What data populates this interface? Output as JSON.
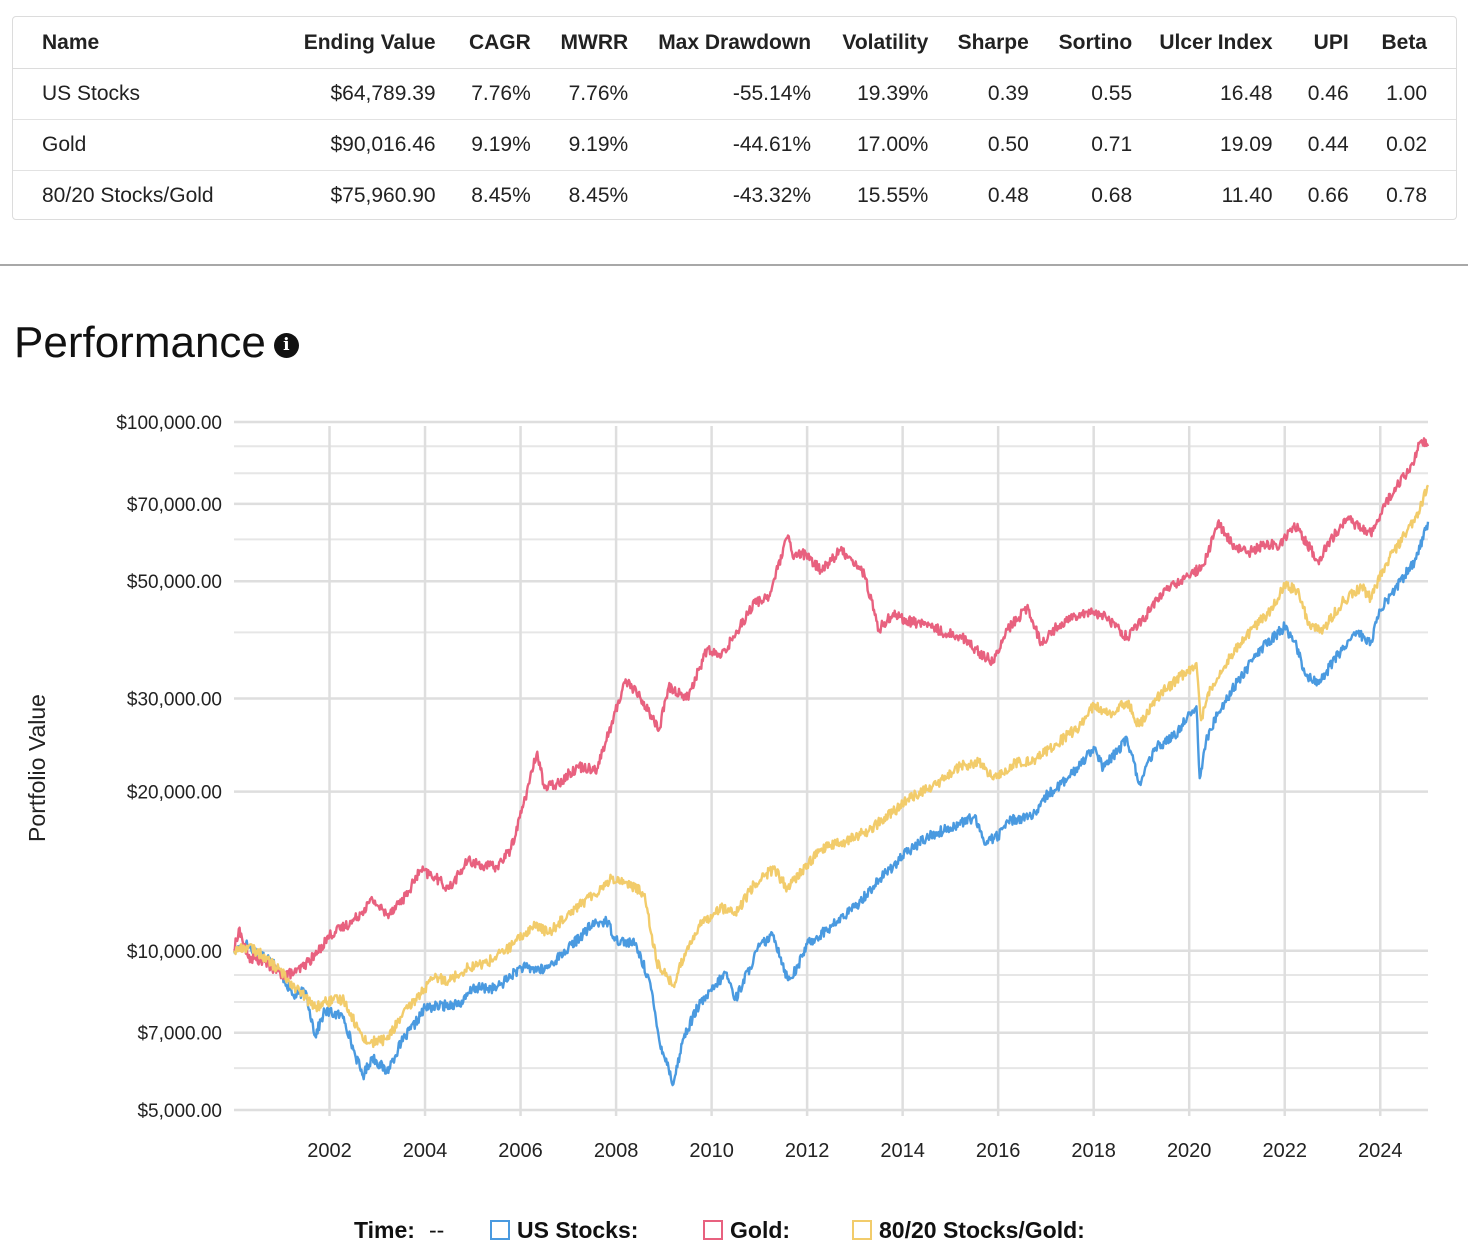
{
  "table": {
    "headers": [
      "Name",
      "Ending Value",
      "CAGR",
      "MWRR",
      "Max Drawdown",
      "Volatility",
      "Sharpe",
      "Sortino",
      "Ulcer Index",
      "UPI",
      "Beta"
    ],
    "rows": [
      [
        "US Stocks",
        "$64,789.39",
        "7.76%",
        "7.76%",
        "-55.14%",
        "19.39%",
        "0.39",
        "0.55",
        "16.48",
        "0.46",
        "1.00"
      ],
      [
        "Gold",
        "$90,016.46",
        "9.19%",
        "9.19%",
        "-44.61%",
        "17.00%",
        "0.50",
        "0.71",
        "19.09",
        "0.44",
        "0.02"
      ],
      [
        "80/20 Stocks/Gold",
        "$75,960.90",
        "8.45%",
        "8.45%",
        "-43.32%",
        "15.55%",
        "0.48",
        "0.68",
        "11.40",
        "0.66",
        "0.78"
      ]
    ]
  },
  "section": {
    "title": "Performance",
    "info_icon": "info-icon"
  },
  "chart_data": {
    "type": "line",
    "title": "Performance",
    "xlabel": "",
    "ylabel": "Portfolio Value",
    "yscale": "log",
    "ylim": [
      5000,
      100000
    ],
    "xlim": [
      2000.0,
      2025.0
    ],
    "yticks": [
      {
        "value": 100000,
        "label": "$100,000.00"
      },
      {
        "value": 70000,
        "label": "$70,000.00"
      },
      {
        "value": 50000,
        "label": "$50,000.00"
      },
      {
        "value": 30000,
        "label": "$30,000.00"
      },
      {
        "value": 20000,
        "label": "$20,000.00"
      },
      {
        "value": 10000,
        "label": "$10,000.00"
      },
      {
        "value": 7000,
        "label": "$7,000.00"
      },
      {
        "value": 5000,
        "label": "$5,000.00"
      }
    ],
    "minor_gridlines": [
      90000,
      80000,
      60000,
      40000,
      9000,
      8000,
      6000
    ],
    "xticks": [
      "2002",
      "2004",
      "2006",
      "2008",
      "2010",
      "2012",
      "2014",
      "2016",
      "2018",
      "2020",
      "2022",
      "2024"
    ],
    "series": [
      {
        "name": "US Stocks",
        "color": "#4a9ae0",
        "points": [
          [
            2000.0,
            10000
          ],
          [
            2000.25,
            10300
          ],
          [
            2000.5,
            9900
          ],
          [
            2000.75,
            9700
          ],
          [
            2001.0,
            9000
          ],
          [
            2001.25,
            8200
          ],
          [
            2001.5,
            8400
          ],
          [
            2001.7,
            6900
          ],
          [
            2001.9,
            7700
          ],
          [
            2002.3,
            7500
          ],
          [
            2002.5,
            6500
          ],
          [
            2002.7,
            5800
          ],
          [
            2002.9,
            6300
          ],
          [
            2003.2,
            5900
          ],
          [
            2003.5,
            6700
          ],
          [
            2003.8,
            7300
          ],
          [
            2004.0,
            7800
          ],
          [
            2004.5,
            7900
          ],
          [
            2004.8,
            8000
          ],
          [
            2005.0,
            8500
          ],
          [
            2005.5,
            8500
          ],
          [
            2006.0,
            9300
          ],
          [
            2006.5,
            9200
          ],
          [
            2007.0,
            10100
          ],
          [
            2007.5,
            11200
          ],
          [
            2007.8,
            11400
          ],
          [
            2008.0,
            10500
          ],
          [
            2008.4,
            10300
          ],
          [
            2008.7,
            8800
          ],
          [
            2008.9,
            6800
          ],
          [
            2009.1,
            6000
          ],
          [
            2009.2,
            5600
          ],
          [
            2009.4,
            6800
          ],
          [
            2009.7,
            7800
          ],
          [
            2010.0,
            8400
          ],
          [
            2010.3,
            9100
          ],
          [
            2010.5,
            8100
          ],
          [
            2010.8,
            9300
          ],
          [
            2011.0,
            10200
          ],
          [
            2011.3,
            10700
          ],
          [
            2011.6,
            8800
          ],
          [
            2011.8,
            9300
          ],
          [
            2012.0,
            10300
          ],
          [
            2012.5,
            11100
          ],
          [
            2013.0,
            12100
          ],
          [
            2013.5,
            13600
          ],
          [
            2014.0,
            15100
          ],
          [
            2014.5,
            16400
          ],
          [
            2015.0,
            17100
          ],
          [
            2015.5,
            17900
          ],
          [
            2015.7,
            16100
          ],
          [
            2016.0,
            16500
          ],
          [
            2016.2,
            17600
          ],
          [
            2016.8,
            18100
          ],
          [
            2017.0,
            19600
          ],
          [
            2017.5,
            21300
          ],
          [
            2018.0,
            24300
          ],
          [
            2018.2,
            22100
          ],
          [
            2018.7,
            25200
          ],
          [
            2018.95,
            20700
          ],
          [
            2019.3,
            24200
          ],
          [
            2019.7,
            25500
          ],
          [
            2020.0,
            28100
          ],
          [
            2020.15,
            29000
          ],
          [
            2020.22,
            21200
          ],
          [
            2020.35,
            24800
          ],
          [
            2020.6,
            28200
          ],
          [
            2021.0,
            32200
          ],
          [
            2021.5,
            37200
          ],
          [
            2022.0,
            41000
          ],
          [
            2022.2,
            38500
          ],
          [
            2022.45,
            33100
          ],
          [
            2022.75,
            32200
          ],
          [
            2023.0,
            35200
          ],
          [
            2023.5,
            40200
          ],
          [
            2023.8,
            38200
          ],
          [
            2024.0,
            44100
          ],
          [
            2024.5,
            51100
          ],
          [
            2024.75,
            55100
          ],
          [
            2025.0,
            64789
          ]
        ]
      },
      {
        "name": "Gold",
        "color": "#e8617f",
        "points": [
          [
            2000.0,
            10000
          ],
          [
            2000.1,
            11000
          ],
          [
            2000.3,
            9700
          ],
          [
            2000.6,
            9600
          ],
          [
            2001.0,
            9000
          ],
          [
            2001.3,
            9100
          ],
          [
            2001.7,
            9800
          ],
          [
            2002.0,
            10700
          ],
          [
            2002.5,
            11400
          ],
          [
            2002.9,
            12500
          ],
          [
            2003.2,
            11700
          ],
          [
            2003.6,
            12700
          ],
          [
            2003.9,
            14200
          ],
          [
            2004.2,
            13800
          ],
          [
            2004.5,
            13100
          ],
          [
            2004.9,
            14800
          ],
          [
            2005.2,
            14500
          ],
          [
            2005.5,
            14400
          ],
          [
            2005.8,
            15600
          ],
          [
            2006.1,
            19500
          ],
          [
            2006.35,
            23800
          ],
          [
            2006.5,
            20300
          ],
          [
            2006.8,
            20800
          ],
          [
            2007.2,
            22300
          ],
          [
            2007.6,
            22100
          ],
          [
            2007.9,
            26700
          ],
          [
            2008.2,
            32600
          ],
          [
            2008.5,
            30200
          ],
          [
            2008.7,
            28200
          ],
          [
            2008.9,
            26200
          ],
          [
            2009.1,
            31500
          ],
          [
            2009.5,
            30100
          ],
          [
            2009.9,
            37100
          ],
          [
            2010.2,
            36000
          ],
          [
            2010.6,
            41200
          ],
          [
            2010.9,
            45500
          ],
          [
            2011.2,
            46800
          ],
          [
            2011.6,
            61000
          ],
          [
            2011.7,
            55500
          ],
          [
            2011.9,
            56500
          ],
          [
            2012.3,
            52500
          ],
          [
            2012.7,
            57200
          ],
          [
            2012.9,
            55500
          ],
          [
            2013.2,
            51500
          ],
          [
            2013.5,
            40500
          ],
          [
            2013.8,
            43500
          ],
          [
            2014.1,
            42000
          ],
          [
            2014.5,
            41500
          ],
          [
            2014.9,
            39800
          ],
          [
            2015.2,
            39500
          ],
          [
            2015.6,
            36700
          ],
          [
            2015.9,
            35200
          ],
          [
            2016.2,
            40500
          ],
          [
            2016.6,
            44500
          ],
          [
            2016.9,
            38300
          ],
          [
            2017.3,
            41500
          ],
          [
            2017.7,
            43500
          ],
          [
            2018.0,
            43800
          ],
          [
            2018.3,
            42500
          ],
          [
            2018.7,
            39200
          ],
          [
            2019.0,
            42000
          ],
          [
            2019.5,
            48200
          ],
          [
            2019.9,
            50500
          ],
          [
            2020.3,
            53500
          ],
          [
            2020.6,
            64600
          ],
          [
            2020.9,
            58600
          ],
          [
            2021.2,
            56500
          ],
          [
            2021.6,
            58600
          ],
          [
            2021.9,
            58600
          ],
          [
            2022.2,
            64300
          ],
          [
            2022.7,
            54500
          ],
          [
            2023.0,
            60500
          ],
          [
            2023.3,
            65700
          ],
          [
            2023.8,
            61500
          ],
          [
            2024.0,
            66800
          ],
          [
            2024.3,
            75000
          ],
          [
            2024.6,
            80500
          ],
          [
            2024.85,
            92000
          ],
          [
            2025.0,
            90016
          ]
        ]
      },
      {
        "name": "80/20 Stocks/Gold",
        "color": "#f2cc6b",
        "points": [
          [
            2000.0,
            10000
          ],
          [
            2000.3,
            10200
          ],
          [
            2000.6,
            9800
          ],
          [
            2001.0,
            9100
          ],
          [
            2001.3,
            8500
          ],
          [
            2001.7,
            7800
          ],
          [
            2001.9,
            8000
          ],
          [
            2002.3,
            8100
          ],
          [
            2002.6,
            7100
          ],
          [
            2002.8,
            6700
          ],
          [
            2003.2,
            6800
          ],
          [
            2003.5,
            7500
          ],
          [
            2003.9,
            8300
          ],
          [
            2004.2,
            8900
          ],
          [
            2004.5,
            8800
          ],
          [
            2004.9,
            9300
          ],
          [
            2005.3,
            9500
          ],
          [
            2005.8,
            10200
          ],
          [
            2006.3,
            11200
          ],
          [
            2006.6,
            10800
          ],
          [
            2007.0,
            11800
          ],
          [
            2007.5,
            12700
          ],
          [
            2007.9,
            13700
          ],
          [
            2008.2,
            13500
          ],
          [
            2008.6,
            12800
          ],
          [
            2008.85,
            9500
          ],
          [
            2009.0,
            9100
          ],
          [
            2009.2,
            8600
          ],
          [
            2009.5,
            10200
          ],
          [
            2009.8,
            11300
          ],
          [
            2010.2,
            12100
          ],
          [
            2010.5,
            11700
          ],
          [
            2010.9,
            13400
          ],
          [
            2011.3,
            14300
          ],
          [
            2011.6,
            13100
          ],
          [
            2011.9,
            14200
          ],
          [
            2012.3,
            15600
          ],
          [
            2012.8,
            16100
          ],
          [
            2013.3,
            16900
          ],
          [
            2013.8,
            18300
          ],
          [
            2014.2,
            19600
          ],
          [
            2014.7,
            20600
          ],
          [
            2015.2,
            22300
          ],
          [
            2015.6,
            22700
          ],
          [
            2015.9,
            21100
          ],
          [
            2016.3,
            22500
          ],
          [
            2016.8,
            23100
          ],
          [
            2017.2,
            24500
          ],
          [
            2017.7,
            26600
          ],
          [
            2018.0,
            29100
          ],
          [
            2018.3,
            28000
          ],
          [
            2018.7,
            29600
          ],
          [
            2018.95,
            26600
          ],
          [
            2019.4,
            30600
          ],
          [
            2019.9,
            33500
          ],
          [
            2020.15,
            35000
          ],
          [
            2020.25,
            27300
          ],
          [
            2020.45,
            31500
          ],
          [
            2020.8,
            35500
          ],
          [
            2021.2,
            39500
          ],
          [
            2021.7,
            44000
          ],
          [
            2022.0,
            49500
          ],
          [
            2022.3,
            47500
          ],
          [
            2022.5,
            41500
          ],
          [
            2022.8,
            40500
          ],
          [
            2023.2,
            45500
          ],
          [
            2023.6,
            48800
          ],
          [
            2023.8,
            46500
          ],
          [
            2024.1,
            53500
          ],
          [
            2024.5,
            61000
          ],
          [
            2024.8,
            67500
          ],
          [
            2025.0,
            75961
          ]
        ]
      }
    ]
  },
  "legend": {
    "time_label": "Time:",
    "time_value": "--",
    "items": [
      "US Stocks:",
      "Gold:",
      "80/20 Stocks/Gold:"
    ]
  }
}
